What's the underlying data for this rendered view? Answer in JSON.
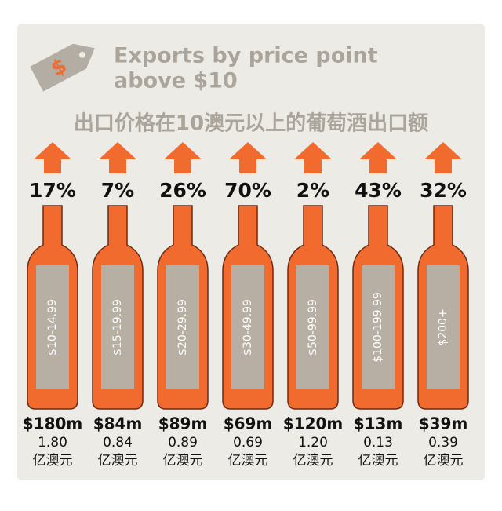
{
  "header": {
    "title_line1": "Exports by price point",
    "title_line2": "above $10",
    "title_cn": "出口价格在10澳元以上的葡萄酒出口额"
  },
  "items": [
    {
      "change": "17%",
      "range": "$10-14.99",
      "amount": "$180m",
      "amount_cn": "1.80",
      "unit_cn": "亿澳元"
    },
    {
      "change": "7%",
      "range": "$15-19.99",
      "amount": "$84m",
      "amount_cn": "0.84",
      "unit_cn": "亿澳元"
    },
    {
      "change": "26%",
      "range": "$20-29.99",
      "amount": "$89m",
      "amount_cn": "0.89",
      "unit_cn": "亿澳元"
    },
    {
      "change": "70%",
      "range": "$30-49.99",
      "amount": "$69m",
      "amount_cn": "0.69",
      "unit_cn": "亿澳元"
    },
    {
      "change": "2%",
      "range": "$50-99.99",
      "amount": "$120m",
      "amount_cn": "1.20",
      "unit_cn": "亿澳元"
    },
    {
      "change": "43%",
      "range": "$100-199.99",
      "amount": "$13m",
      "amount_cn": "0.13",
      "unit_cn": "亿澳元"
    },
    {
      "change": "32%",
      "range": "$200+",
      "amount": "$39m",
      "amount_cn": "0.39",
      "unit_cn": "亿澳元"
    }
  ]
}
